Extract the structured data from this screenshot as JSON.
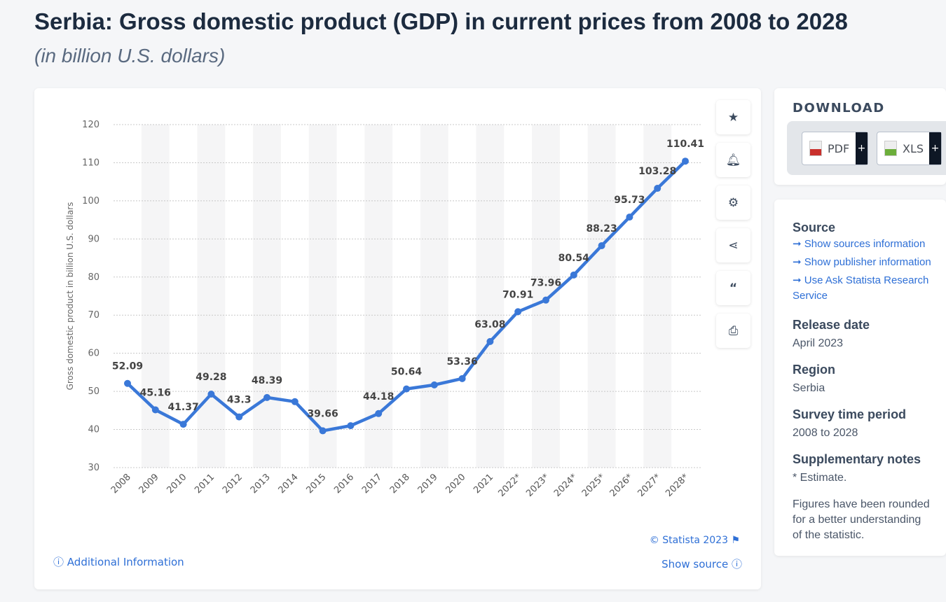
{
  "header": {
    "title": "Serbia: Gross domestic product (GDP) in current prices from 2008 to 2028",
    "subtitle": "(in billion U.S. dollars)"
  },
  "chart_data": {
    "type": "line",
    "ylabel": "Gross domestic product in billion U.S. dollars",
    "ylim": [
      30,
      120
    ],
    "yticks": [
      30,
      40,
      50,
      60,
      70,
      80,
      90,
      100,
      110,
      120
    ],
    "grid": true,
    "color": "#3a78d8",
    "categories": [
      "2008",
      "2009",
      "2010",
      "2011",
      "2012",
      "2013",
      "2014",
      "2015",
      "2016",
      "2017",
      "2018",
      "2019",
      "2020",
      "2021",
      "2022*",
      "2023*",
      "2024*",
      "2025*",
      "2026*",
      "2027*",
      "2028*"
    ],
    "values": [
      52.09,
      45.16,
      41.37,
      49.28,
      43.3,
      48.39,
      47.3,
      39.66,
      41.0,
      44.18,
      50.64,
      51.7,
      53.36,
      63.08,
      70.91,
      73.96,
      80.54,
      88.23,
      95.73,
      103.28,
      110.41
    ],
    "data_labels": [
      "52.09",
      "45.16",
      "41.37",
      "49.28",
      "43.3",
      "48.39",
      null,
      "39.66",
      null,
      "44.18",
      "50.64",
      null,
      "53.36",
      "63.08",
      "70.91",
      "73.96",
      "80.54",
      "88.23",
      "95.73",
      "103.28",
      "110.41"
    ]
  },
  "chart_footer": {
    "copyright": "© Statista 2023",
    "additional_info": "Additional Information",
    "show_source": "Show source"
  },
  "toolbar": [
    "star-icon",
    "bell-icon",
    "gear-icon",
    "share-icon",
    "quote-icon",
    "print-icon"
  ],
  "download": {
    "heading": "DOWNLOAD",
    "pdf": "PDF",
    "xls": "XLS",
    "plus": "+"
  },
  "info": {
    "source_heading": "Source",
    "source_links": [
      "Show sources information",
      "Show publisher information",
      "Use Ask Statista Research Service"
    ],
    "release_heading": "Release date",
    "release": "April 2023",
    "region_heading": "Region",
    "region": "Serbia",
    "period_heading": "Survey time period",
    "period": "2008 to 2028",
    "notes_heading": "Supplementary notes",
    "notes": "* Estimate.",
    "notes_text": "Figures have been rounded for a better understanding of the statistic."
  }
}
